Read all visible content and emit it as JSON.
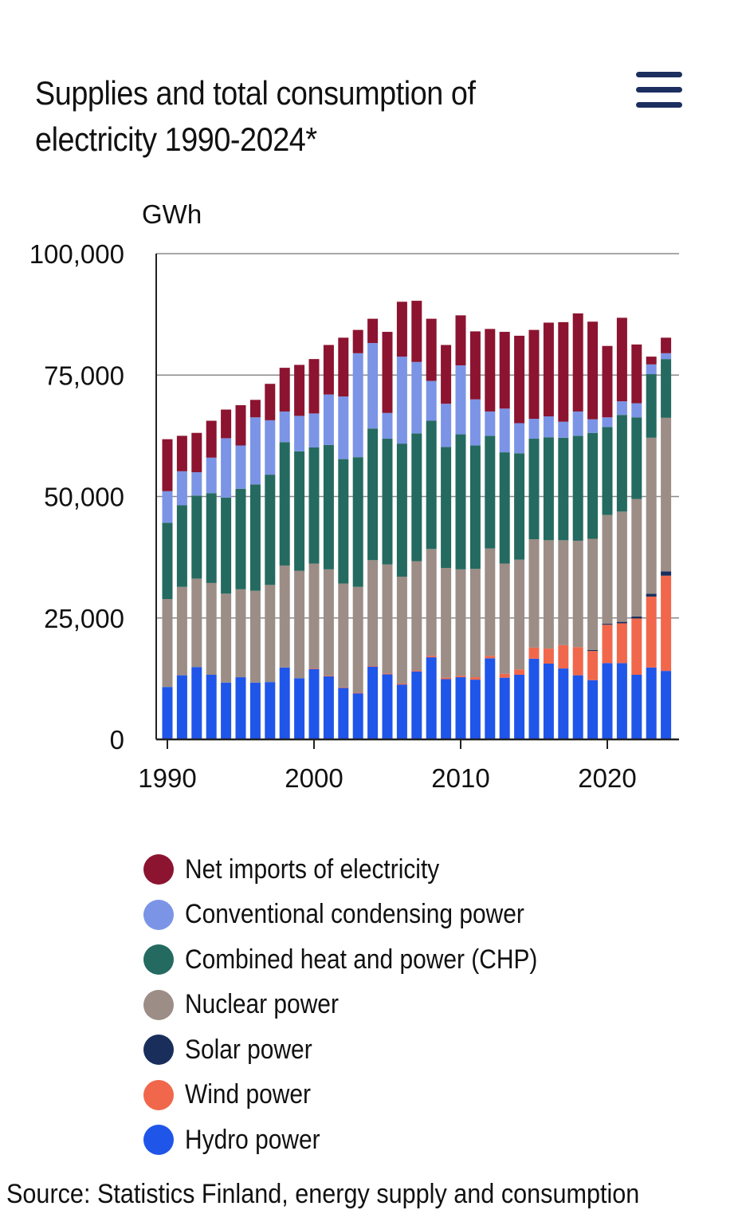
{
  "header": {
    "title_line1": "Supplies and total consumption of",
    "title_line2": "electricity 1990-2024*",
    "menu_icon": "hamburger-menu-icon"
  },
  "chart_data": {
    "type": "bar",
    "stacked": true,
    "title": "Supplies and total consumption of electricity 1990-2024*",
    "xlabel": "",
    "ylabel": "GWh",
    "ylim": [
      0,
      100000
    ],
    "yticks": [
      0,
      25000,
      50000,
      75000,
      100000
    ],
    "ytick_labels": [
      "0",
      "25,000",
      "50,000",
      "75,000",
      "100,000"
    ],
    "xticks": [
      1990,
      2000,
      2010,
      2020
    ],
    "xtick_labels": [
      "1990",
      "2000",
      "2010",
      "2020"
    ],
    "grid": true,
    "legend_position": "bottom",
    "categories": [
      1990,
      1991,
      1992,
      1993,
      1994,
      1995,
      1996,
      1997,
      1998,
      1999,
      2000,
      2001,
      2002,
      2003,
      2004,
      2005,
      2006,
      2007,
      2008,
      2009,
      2010,
      2011,
      2012,
      2013,
      2014,
      2015,
      2016,
      2017,
      2018,
      2019,
      2020,
      2021,
      2022,
      2023,
      2024
    ],
    "series": [
      {
        "name": "Hydro power",
        "color": "#1f55e8",
        "values": [
          10800,
          13200,
          14900,
          13300,
          11700,
          12800,
          11700,
          11800,
          14800,
          12600,
          14500,
          13000,
          10600,
          9500,
          15000,
          13400,
          11300,
          14000,
          16900,
          12400,
          12800,
          12300,
          16700,
          12700,
          13300,
          16600,
          15600,
          14600,
          13200,
          12200,
          15700,
          15700,
          13300,
          14800,
          14100
        ]
      },
      {
        "name": "Wind power",
        "color": "#f0674c",
        "values": [
          0,
          0,
          0,
          0,
          0,
          0,
          0,
          0,
          0,
          0,
          100,
          100,
          100,
          100,
          100,
          200,
          200,
          200,
          300,
          300,
          300,
          500,
          500,
          800,
          1100,
          2300,
          3100,
          4800,
          5800,
          6000,
          7900,
          8200,
          11600,
          14600,
          19600
        ]
      },
      {
        "name": "Solar power",
        "color": "#1a2e5c",
        "values": [
          0,
          0,
          0,
          0,
          0,
          0,
          0,
          0,
          0,
          0,
          0,
          0,
          0,
          0,
          0,
          0,
          0,
          0,
          0,
          0,
          0,
          0,
          0,
          0,
          0,
          0,
          0,
          0,
          0,
          200,
          200,
          300,
          400,
          600,
          900
        ]
      },
      {
        "name": "Nuclear power",
        "color": "#9c8d86",
        "values": [
          18100,
          18200,
          18200,
          18900,
          18300,
          18100,
          18900,
          20000,
          21000,
          22100,
          21600,
          21900,
          21400,
          21800,
          21800,
          22400,
          22000,
          22500,
          22000,
          22600,
          21900,
          22300,
          22100,
          22700,
          22600,
          22300,
          22300,
          21600,
          21900,
          22900,
          22400,
          22700,
          24200,
          32100,
          31600
        ]
      },
      {
        "name": "Combined heat and power (CHP)",
        "color": "#256a60",
        "values": [
          15700,
          16800,
          17100,
          18500,
          19800,
          20700,
          21900,
          22700,
          25400,
          24600,
          23900,
          25600,
          25600,
          26700,
          27100,
          25900,
          27400,
          26300,
          26400,
          24900,
          27800,
          25400,
          23200,
          22900,
          21900,
          20700,
          21200,
          21100,
          21600,
          21800,
          18100,
          19900,
          16800,
          13100,
          12100
        ]
      },
      {
        "name": "Conventional condensing power",
        "color": "#7b94e6",
        "values": [
          6500,
          7000,
          4800,
          7300,
          12200,
          8900,
          13800,
          11200,
          6300,
          7300,
          7000,
          10400,
          12900,
          21400,
          17600,
          5300,
          17900,
          14700,
          8200,
          8900,
          14200,
          9500,
          5000,
          9000,
          6200,
          4100,
          4300,
          3300,
          5000,
          2800,
          2000,
          2800,
          2900,
          2000,
          1200
        ]
      },
      {
        "name": "Net imports of electricity",
        "color": "#8c1430",
        "values": [
          10700,
          7300,
          8100,
          7600,
          5900,
          8300,
          3600,
          7500,
          9000,
          10500,
          11200,
          10200,
          12100,
          4800,
          5000,
          16700,
          11300,
          12600,
          12800,
          12100,
          10300,
          14000,
          17000,
          15800,
          18000,
          18300,
          19300,
          20500,
          20200,
          20100,
          14700,
          17200,
          12100,
          1600,
          3200
        ]
      }
    ]
  },
  "legend": {
    "items": [
      {
        "label": "Net imports of electricity",
        "color": "#8c1430"
      },
      {
        "label": "Conventional condensing power",
        "color": "#7b94e6"
      },
      {
        "label": "Combined heat and power (CHP)",
        "color": "#256a60"
      },
      {
        "label": "Nuclear power",
        "color": "#9c8d86"
      },
      {
        "label": "Solar power",
        "color": "#1a2e5c"
      },
      {
        "label": "Wind power",
        "color": "#f0674c"
      },
      {
        "label": "Hydro power",
        "color": "#1f55e8"
      }
    ]
  },
  "footer": {
    "source_text": "Source: Statistics Finland, energy supply and consumption"
  }
}
